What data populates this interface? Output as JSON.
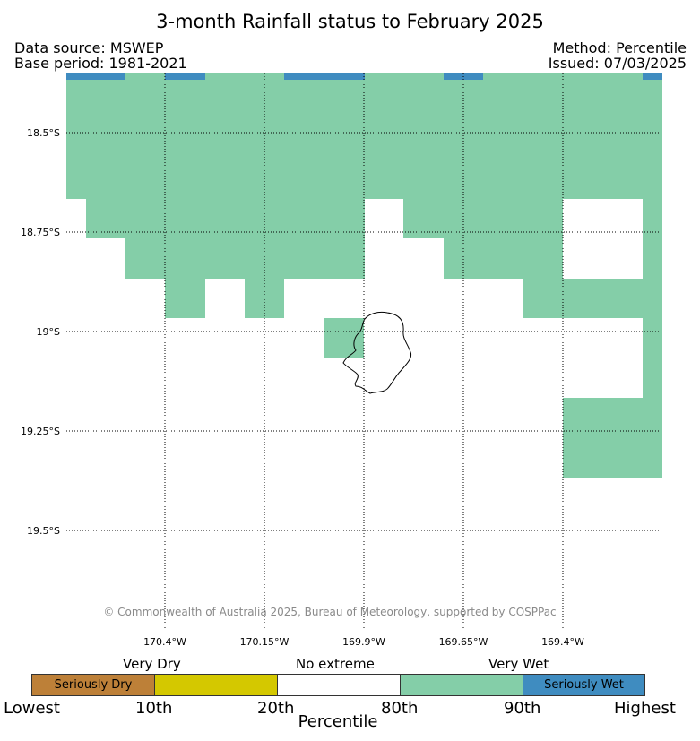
{
  "title": "3-month Rainfall status to February 2025",
  "header": {
    "data_source": "Data source: MSWEP",
    "base_period": "Base period: 1981-2021",
    "method": "Method: Percentile",
    "issued": "Issued: 07/03/2025"
  },
  "map": {
    "lat_labels": [
      "18.5°S",
      "18.75°S",
      "19°S",
      "19.25°S",
      "19.5°S"
    ],
    "lon_labels": [
      "170.4°W",
      "170.15°W",
      "169.9°W",
      "169.65°W",
      "169.4°W"
    ],
    "copyright": "© Commonwealth of Australia 2025, Bureau of Meteorology, supported by COSPPac",
    "colors": {
      "very_wet": "#84ceA8",
      "seriously_wet": "#3f8cc0",
      "very_dry": "#d4c800",
      "seriously_dry": "#bd8038",
      "no_extreme": "#ffffff"
    }
  },
  "legend": {
    "categories": {
      "very_dry": "Very Dry",
      "no_extreme": "No extreme",
      "very_wet": "Very Wet"
    },
    "boxes": {
      "seriously_dry": "Seriously Dry",
      "seriously_wet": "Seriously Wet"
    },
    "ticks": [
      "Lowest",
      "10th",
      "20th",
      "80th",
      "90th",
      "Highest"
    ],
    "axis_label": "Percentile"
  }
}
